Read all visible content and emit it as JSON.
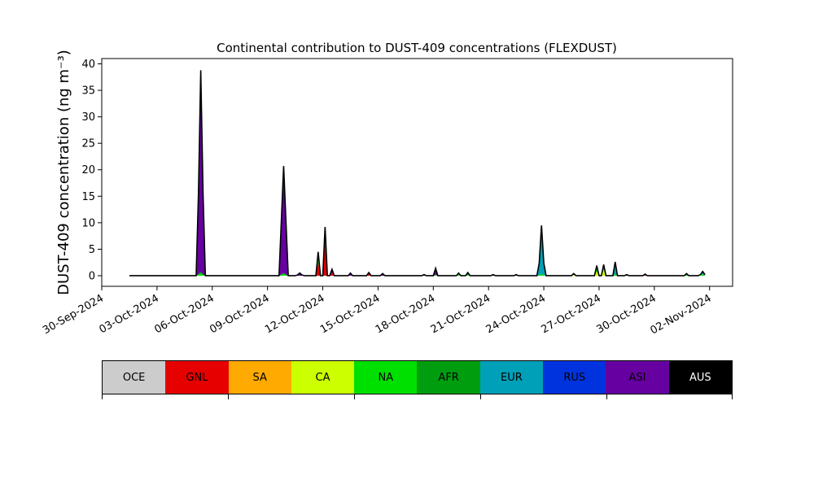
{
  "chart_data": {
    "type": "area",
    "title": "Continental contribution to DUST-409 concentrations (FLEXDUST)",
    "ylabel": "DUST-409 concentration (ng m⁻³)",
    "xlabel": "",
    "ylim": [
      -2,
      41
    ],
    "xlim": [
      "2024-09-30T00:00",
      "2024-11-03T06:00"
    ],
    "yticks": [
      0,
      5,
      10,
      15,
      20,
      25,
      30,
      35,
      40
    ],
    "xtick_labels": [
      "30-Sep-2024",
      "03-Oct-2024",
      "06-Oct-2024",
      "09-Oct-2024",
      "12-Oct-2024",
      "15-Oct-2024",
      "18-Oct-2024",
      "21-Oct-2024",
      "24-Oct-2024",
      "27-Oct-2024",
      "30-Oct-2024",
      "02-Nov-2024"
    ],
    "xtick_dates": [
      "2024-09-30",
      "2024-10-03",
      "2024-10-06",
      "2024-10-09",
      "2024-10-12",
      "2024-10-15",
      "2024-10-18",
      "2024-10-21",
      "2024-10-24",
      "2024-10-27",
      "2024-10-30",
      "2024-11-02"
    ],
    "series_order": [
      "OCE",
      "GNL",
      "SA",
      "CA",
      "NA",
      "AFR",
      "EUR",
      "RUS",
      "ASI",
      "AUS"
    ],
    "series_colors": {
      "OCE": "#cccccc",
      "GNL": "#e60000",
      "SA": "#ffaa00",
      "CA": "#ccff00",
      "NA": "#00e000",
      "AFR": "#009e0f",
      "EUR": "#00a0b8",
      "RUS": "#0033dd",
      "ASI": "#6600a0",
      "AUS": "#000000"
    },
    "outline_color": "#000000",
    "events": [
      {
        "date": "2024-10-05T09:00",
        "width_h": 5,
        "parts": {
          "NA": 0.4,
          "AFR": 0.3,
          "ASI": 38.1
        }
      },
      {
        "date": "2024-10-09T21:00",
        "width_h": 6,
        "parts": {
          "NA": 0.3,
          "AFR": 0.2,
          "ASI": 20.2
        }
      },
      {
        "date": "2024-10-10T18:00",
        "width_h": 4,
        "parts": {
          "ASI": 0.5
        }
      },
      {
        "date": "2024-10-11T18:00",
        "width_h": 3,
        "parts": {
          "GNL": 2.5,
          "NA": 0.8,
          "AFR": 0.6,
          "ASI": 0.6
        }
      },
      {
        "date": "2024-10-12T03:00",
        "width_h": 3,
        "parts": {
          "GNL": 6.5,
          "NA": 1.2,
          "ASI": 1.5
        }
      },
      {
        "date": "2024-10-12T12:00",
        "width_h": 3,
        "parts": {
          "GNL": 0.6,
          "ASI": 0.6
        }
      },
      {
        "date": "2024-10-13T12:00",
        "width_h": 3,
        "parts": {
          "ASI": 0.5
        }
      },
      {
        "date": "2024-10-14T12:00",
        "width_h": 3,
        "parts": {
          "GNL": 0.3,
          "ASI": 0.3
        }
      },
      {
        "date": "2024-10-15T06:00",
        "width_h": 3,
        "parts": {
          "ASI": 0.4
        }
      },
      {
        "date": "2024-10-17T12:00",
        "width_h": 3,
        "parts": {
          "ASI": 0.2
        }
      },
      {
        "date": "2024-10-18T03:00",
        "width_h": 3,
        "parts": {
          "NA": 0.2,
          "ASI": 1.2
        }
      },
      {
        "date": "2024-10-19T09:00",
        "width_h": 3,
        "parts": {
          "NA": 0.3,
          "ASI": 0.2
        }
      },
      {
        "date": "2024-10-19T21:00",
        "width_h": 3,
        "parts": {
          "NA": 0.3,
          "ASI": 0.3
        }
      },
      {
        "date": "2024-10-21T06:00",
        "width_h": 3,
        "parts": {
          "AFR": 0.2
        }
      },
      {
        "date": "2024-10-22T12:00",
        "width_h": 3,
        "parts": {
          "ASI": 0.2
        }
      },
      {
        "date": "2024-10-23T21:00",
        "width_h": 4,
        "parts": {
          "NA": 0.4,
          "EUR": 8.6,
          "ASI": 0.5
        }
      },
      {
        "date": "2024-10-25T15:00",
        "width_h": 3,
        "parts": {
          "CA": 0.2,
          "ASI": 0.2
        }
      },
      {
        "date": "2024-10-26T21:00",
        "width_h": 3,
        "parts": {
          "CA": 0.8,
          "NA": 0.6,
          "ASI": 0.5
        }
      },
      {
        "date": "2024-10-27T06:00",
        "width_h": 3,
        "parts": {
          "CA": 1.2,
          "NA": 0.6,
          "ASI": 0.3
        }
      },
      {
        "date": "2024-10-27T21:00",
        "width_h": 3,
        "parts": {
          "NA": 0.3,
          "EUR": 2.0,
          "ASI": 0.3
        }
      },
      {
        "date": "2024-10-28T12:00",
        "width_h": 3,
        "parts": {
          "ASI": 0.2
        }
      },
      {
        "date": "2024-10-29T12:00",
        "width_h": 3,
        "parts": {
          "GNL": 0.1,
          "ASI": 0.2
        }
      },
      {
        "date": "2024-10-31T18:00",
        "width_h": 3,
        "parts": {
          "NA": 0.2,
          "ASI": 0.2
        }
      },
      {
        "date": "2024-11-01T15:00",
        "width_h": 4,
        "parts": {
          "NA": 0.3,
          "EUR": 0.4,
          "ASI": 0.1
        }
      }
    ],
    "data_start": "2024-10-01T12:00",
    "data_end": "2024-11-01T18:00"
  },
  "legend": {
    "items": [
      {
        "label": "OCE",
        "color": "#cccccc"
      },
      {
        "label": "GNL",
        "color": "#e60000"
      },
      {
        "label": "SA",
        "color": "#ffaa00"
      },
      {
        "label": "CA",
        "color": "#ccff00"
      },
      {
        "label": "NA",
        "color": "#00e000"
      },
      {
        "label": "AFR",
        "color": "#009e0f"
      },
      {
        "label": "EUR",
        "color": "#00a0b8"
      },
      {
        "label": "RUS",
        "color": "#0033dd"
      },
      {
        "label": "ASI",
        "color": "#6600a0"
      },
      {
        "label": "AUS",
        "color": "#000000",
        "text_color": "#ffffff"
      }
    ]
  }
}
